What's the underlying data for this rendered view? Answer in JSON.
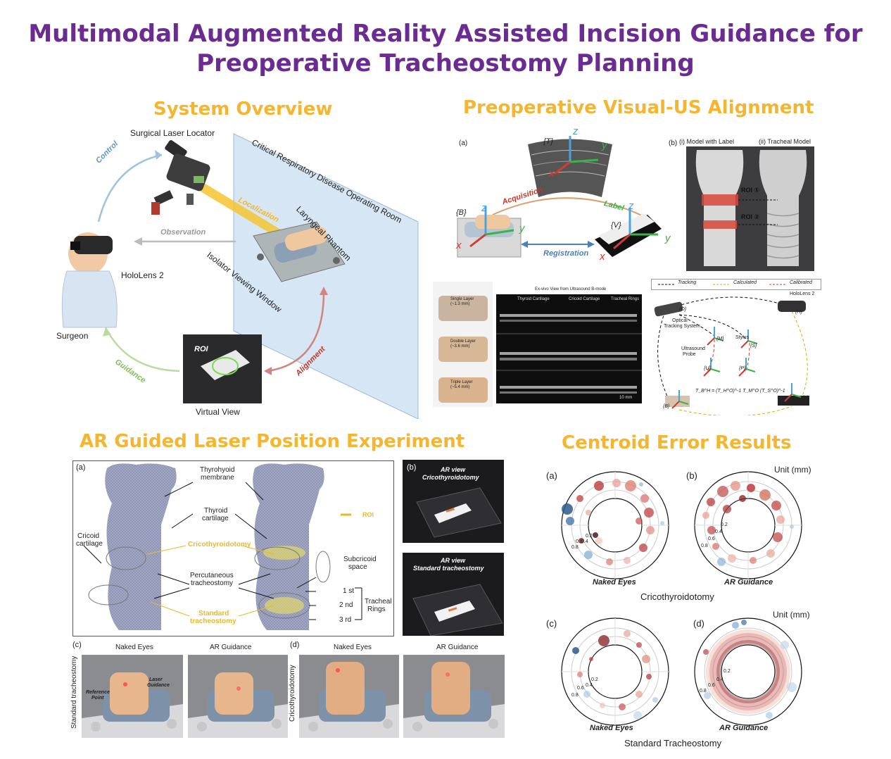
{
  "title": {
    "line1": "Multimodal Augmented Reality Assisted Incision Guidance for",
    "line2": "Preoperative Tracheostomy Planning"
  },
  "system_overview": {
    "heading": "System Overview",
    "surgical_laser_locator": "Surgical Laser Locator",
    "operating_room": "Critical Respiratory Disease Operating Room",
    "localization": "Localization",
    "laryngeal_phantom": "Laryngeal Phantom",
    "isolator": "Isolator Viewing Window",
    "control": "Control",
    "observation": "Observation",
    "hololens": "HoloLens 2",
    "surgeon": "Surgeon",
    "guidance": "Guidance",
    "alignment": "Alignment",
    "roi": "ROI",
    "virtual_view": "Virtual View"
  },
  "alignment": {
    "heading": "Preoperative Visual-US Alignment",
    "a": "(a)",
    "b": "(b)",
    "T": "{T}",
    "B": "{B}",
    "V": "{V}",
    "zt": "z",
    "yt": "y",
    "xt": "x",
    "zb": "z",
    "yb": "y",
    "xb": "x",
    "zv": "z",
    "yv": "y",
    "xv": "x",
    "acquisition": "Acquisition",
    "label": "Label",
    "registration": "Registration",
    "model_label": "(i) Model with Label",
    "tracheal_model": "(ii) Tracheal Model",
    "roi1": "ROI ①",
    "roi2": "ROI ②",
    "us_title": "Ex-vivo View from Ultrasound B-mode",
    "single_layer": "Single Layer",
    "single_thick": "(~1.3 mm)",
    "double_layer": "Double Layer",
    "double_thick": "(~3.6 mm)",
    "triple_layer": "Triple Layer",
    "triple_thick": "(~5.4 mm)",
    "thyroid_cartilage": "Thyroid Cartilage",
    "cricoid_cartilage": "Cricoid Cartilage",
    "tracheal_rings": "Tracheal Rings",
    "scale": "10 mm",
    "legend_tracking": "Tracking",
    "legend_calculated": "Calculated",
    "legend_calibrated": "Calibrated",
    "optical": "Optical",
    "tracking_system": "Tracking System",
    "hololens": "HoloLens 2",
    "ultrasound": "Ultrasound",
    "probe": "Probe",
    "stylus": "Stylus",
    "M": "{M}",
    "S": "{S}",
    "U": "{U}",
    "P": "{P}",
    "Bf": "{B}",
    "Tf": "{T}",
    "H": "{H}",
    "O": "{O}",
    "equation": "T_B^H = (T_H^O)^-1 T_M^O (T_S^O)^-1"
  },
  "laser_experiment": {
    "heading": "AR Guided Laser Position Experiment",
    "a": "(a)",
    "b": "(b)",
    "c": "(c)",
    "d": "(d)",
    "thyrohyoid": "Thyrohyoid",
    "membrane": "membrane",
    "thyroid": "Thyroid",
    "cartilage": "cartilage",
    "roi": "ROI",
    "cricoid": "Cricoid",
    "cricoid_cart": "cartilage",
    "cricothyroidotomy": "Cricothyroidotomy",
    "subcricoid": "Subcricoid",
    "space": "space",
    "percutaneous": "Percutaneous",
    "tracheostomy": "tracheostomy",
    "first": "1 st",
    "second": "2 nd",
    "third": "3 rd",
    "tracheal": "Tracheal",
    "rings": "Rings",
    "standard": "Standard",
    "standard_trach": "tracheostomy",
    "ar_view": "AR view",
    "ar_crico": "Cricothyroidotomy",
    "ar_view2": "AR view",
    "ar_standard": "Standard tracheostomy",
    "naked_eyes_c": "Naked Eyes",
    "ar_guidance_c": "AR Guidance",
    "naked_eyes_d": "Naked Eyes",
    "ar_guidance_d": "AR Guidance",
    "side_c": "Standard tracheostomy",
    "side_d": "Cricothyroidotomy",
    "laser_guidance": "Laser",
    "laser_guidance2": "Guidance",
    "reference": "Reference",
    "reference2": "Point"
  },
  "centroid": {
    "heading": "Centroid Error Results",
    "a": "(a)",
    "b": "(b)",
    "c": "(c)",
    "d": "(d)",
    "unit_top": "Unit (mm)",
    "unit_bottom": "Unit (mm)",
    "naked_top": "Naked Eyes",
    "ar_top": "AR Guidance",
    "group_top": "Cricothyroidotomy",
    "naked_bottom": "Naked Eyes",
    "ar_bottom": "AR Guidance",
    "group_bottom": "Standard Tracheostomy",
    "r_labels": [
      "0.2",
      "0.4",
      "0.6",
      "0.8"
    ]
  },
  "colors": {
    "title": "#6a2c91",
    "heading": "#f4b531",
    "control": "#5b95c9",
    "guidance": "#7fbf5a",
    "alignment": "#c0392b"
  }
}
